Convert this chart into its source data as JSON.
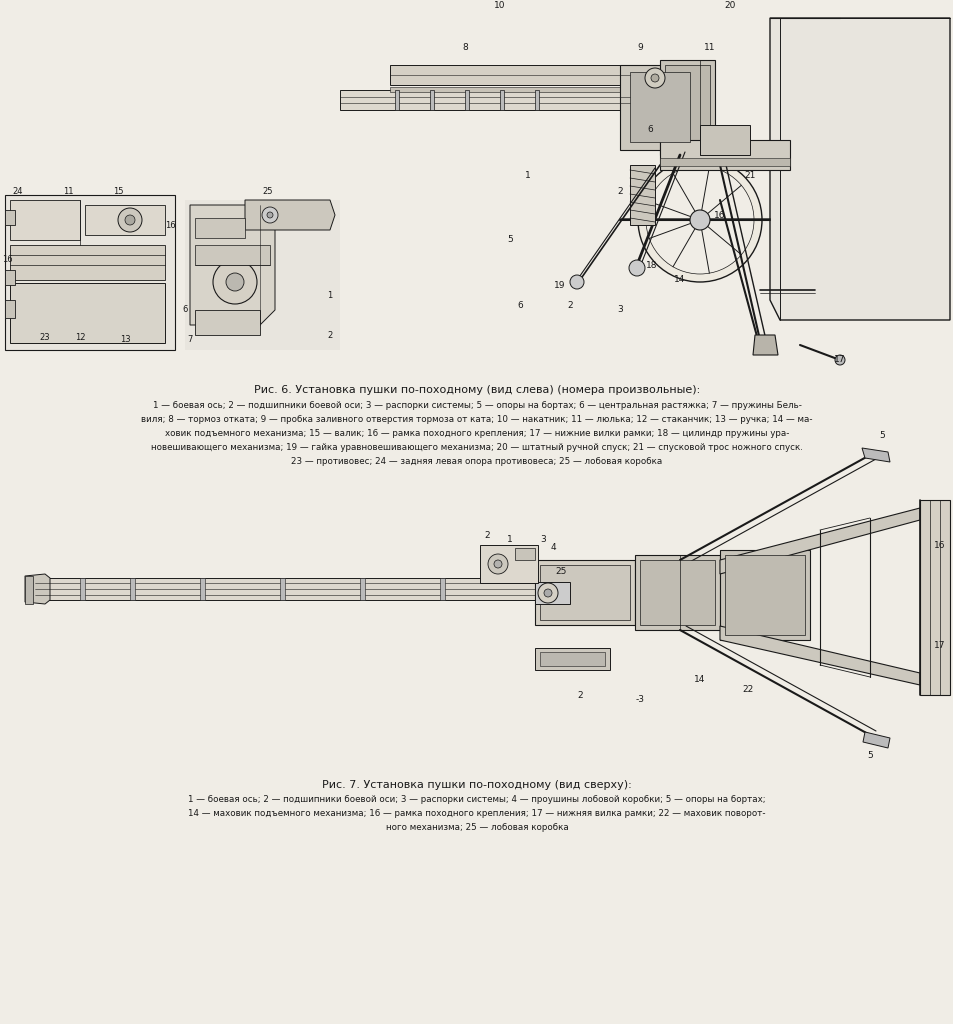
{
  "background_color": "#f0ede6",
  "line_color": "#1a1a1a",
  "title1": "Рис. 6. Установка пушки по-походному (вид слева) (номера произвольные):",
  "title2": "Рис. 7. Установка пушки по-походному (вид сверху):",
  "caption1_lines": [
    "1 — боевая ось; 2 — подшипники боевой оси; 3 — распорки системы; 5 — опоры на бортах; 6 — центральная растяжка; 7 — пружины Бель-",
    "виля; 8 — тормоз отката; 9 — пробка заливного отверстия тормоза от ката; 10 — накатник; 11 — люлька; 12 — стаканчик; 13 — ручка; 14 — ма-",
    "ховик подъемного механизма; 15 — валик; 16 — рамка походного крепления; 17 — нижние вилки рамки; 18 — цилиндр пружины ура-",
    "новешивающего механизма; 19 — гайка уравновешивающего механизма; 20 — штатный ручной спуск; 21 — спусковой трос ножного спуск.",
    "23 — противовес; 24 — задняя левая опора противовеса; 25 — лобовая коробка"
  ],
  "caption2_lines": [
    "1 — боевая ось; 2 — подшипники боевой оси; 3 — распорки системы; 4 — проушины лобовой коробки; 5 — опоры на бортах;",
    "14 — маховик подъемного механизма; 16 — рамка походного крепления; 17 — нижняя вилка рамки; 22 — маховик поворот-",
    "ного механизма; 25 — лобовая коробка"
  ],
  "fig_width": 9.54,
  "fig_height": 10.24,
  "dpi": 100
}
